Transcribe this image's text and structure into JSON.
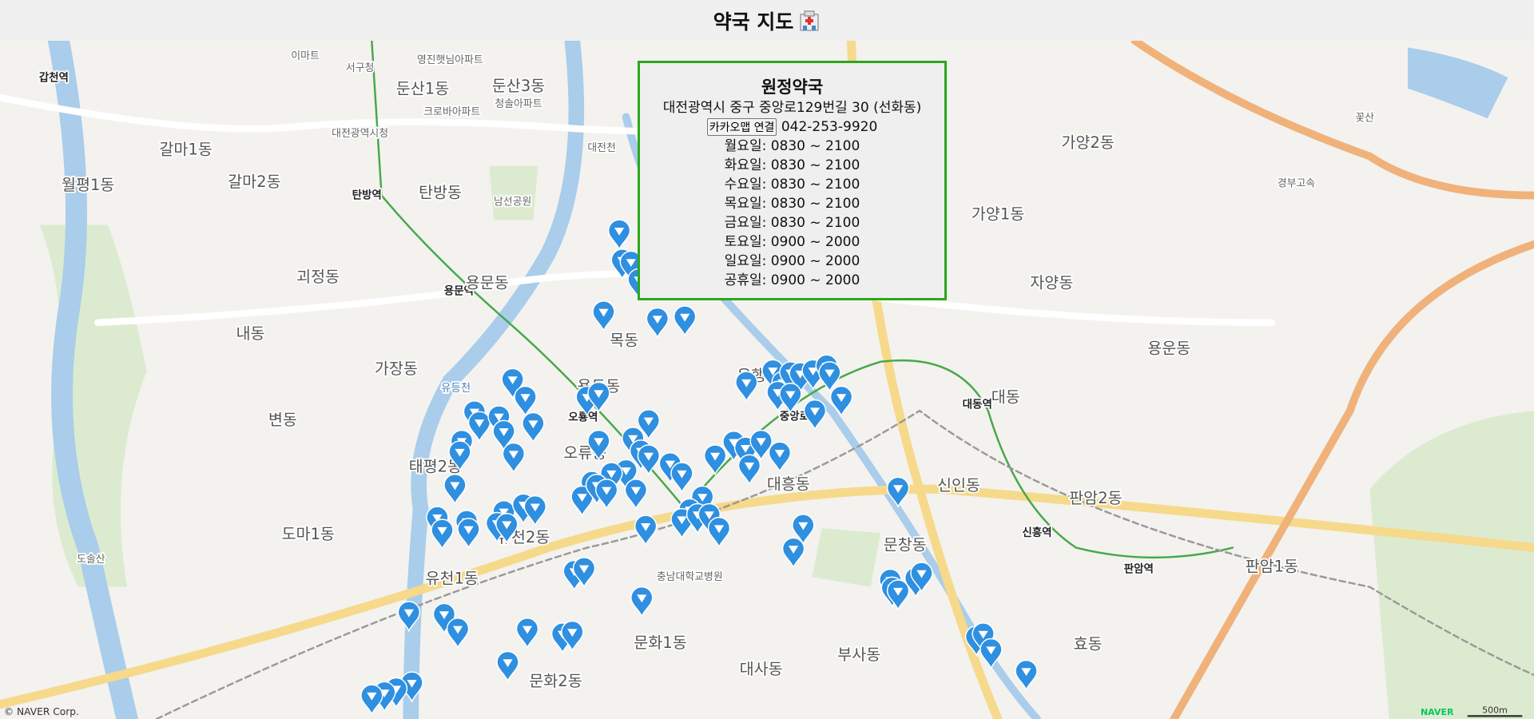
{
  "header": {
    "title": "약국 지도"
  },
  "popup": {
    "name": "원정약국",
    "address": "대전광역시 중구 중앙로129번길 30 (선화동)",
    "button": "카카오맵 연결",
    "phone": "042-253-9920",
    "hours": [
      "월요일: 0830 ~ 2100",
      "화요일: 0830 ~ 2100",
      "수요일: 0830 ~ 2100",
      "목요일: 0830 ~ 2100",
      "금요일: 0830 ~ 2100",
      "토요일: 0900 ~ 2000",
      "일요일: 0900 ~ 2000",
      "공휴일: 0900 ~ 2000"
    ]
  },
  "map": {
    "labels": [
      "갑천역",
      "이마트",
      "서구청",
      "영진햇님아파트",
      "둔산1동",
      "둔산3동",
      "청솔아파트",
      "크로바아파트",
      "대전광역시청",
      "갈마1동",
      "월평1동",
      "갈마2동",
      "탄방역",
      "탄방동",
      "남선공원",
      "대전천",
      "괴정동",
      "용문역",
      "용문동",
      "내동",
      "목동",
      "가장동",
      "유등천",
      "용두동",
      "은행선화동",
      "오룡역",
      "변동",
      "태평2동",
      "오류동",
      "중앙로",
      "대동역",
      "대동",
      "신인동",
      "대흥동",
      "유천2동",
      "도마1동",
      "유천1동",
      "문창동",
      "충남대학교병원",
      "신흥역",
      "판암역",
      "판암1동",
      "판암2동",
      "부사동",
      "대사동",
      "문화1동",
      "문화2동",
      "효동",
      "가양2동",
      "가양1동",
      "자양동",
      "용운동",
      "도솔산",
      "꽃산",
      "경부고속"
    ],
    "attribution": "© NAVER Corp.",
    "logo": "NAVER",
    "scale": "500m"
  }
}
